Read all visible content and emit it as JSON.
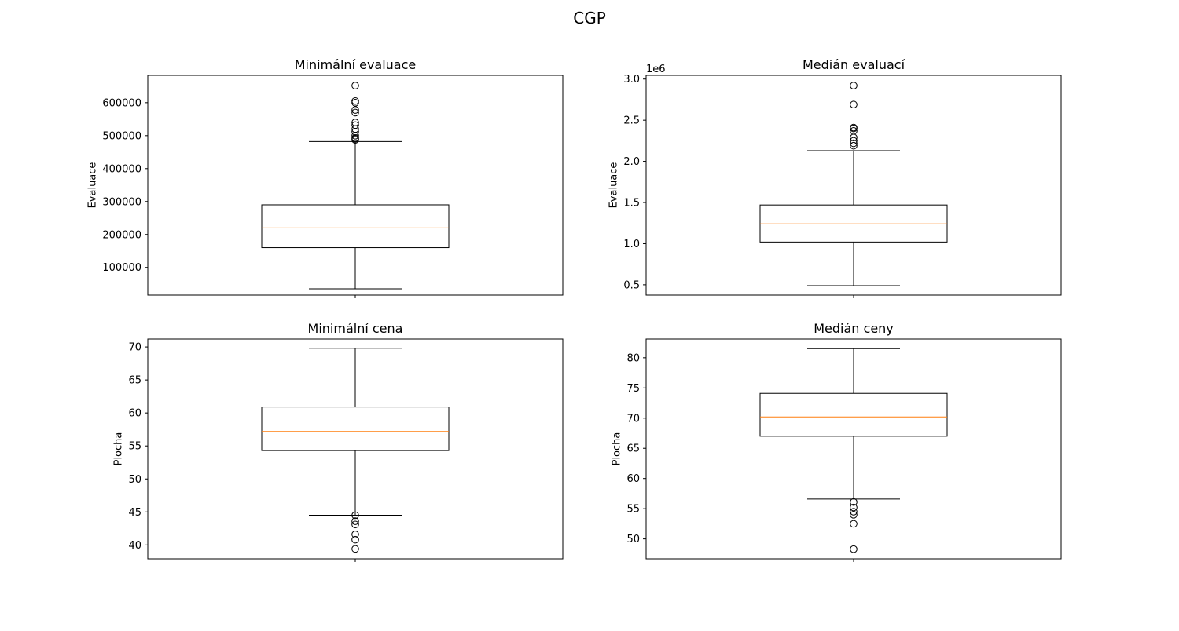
{
  "suptitle": "CGP",
  "chart_data": [
    {
      "type": "box",
      "title": "Minimální evaluace",
      "xlabel": "",
      "ylabel": "Evaluace",
      "ylim": [
        16000,
        683000
      ],
      "yticks": [
        100000,
        200000,
        300000,
        400000,
        500000,
        600000
      ],
      "ytick_labels": [
        "100000",
        "200000",
        "300000",
        "400000",
        "500000",
        "600000"
      ],
      "offset_label": "",
      "x_ticks": 1,
      "box": {
        "whisker_low": 35000,
        "q1": 160000,
        "median": 220000,
        "q3": 290000,
        "whisker_high": 482000,
        "fliers": [
          487000,
          490000,
          493000,
          500000,
          512000,
          520000,
          532000,
          540000,
          570000,
          578000,
          600000,
          605000,
          652000
        ]
      }
    },
    {
      "type": "box",
      "title": "Medián evaluací",
      "xlabel": "",
      "ylabel": "Evaluace",
      "ylim": [
        0.375,
        3.045
      ],
      "yticks": [
        0.5,
        1.0,
        1.5,
        2.0,
        2.5,
        3.0
      ],
      "ytick_labels": [
        "0.5",
        "1.0",
        "1.5",
        "2.0",
        "2.5",
        "3.0"
      ],
      "offset_label": "1e6",
      "x_ticks": 1,
      "box": {
        "whisker_low": 0.49,
        "q1": 1.02,
        "median": 1.24,
        "q3": 1.47,
        "whisker_high": 2.13,
        "fliers": [
          2.19,
          2.22,
          2.25,
          2.29,
          2.37,
          2.4,
          2.41,
          2.69,
          2.92
        ]
      }
    },
    {
      "type": "box",
      "title": "Minimální cena",
      "xlabel": "",
      "ylabel": "Plocha",
      "ylim": [
        37.9,
        71.2
      ],
      "yticks": [
        40,
        45,
        50,
        55,
        60,
        65,
        70
      ],
      "ytick_labels": [
        "40",
        "45",
        "50",
        "55",
        "60",
        "65",
        "70"
      ],
      "offset_label": "",
      "x_ticks": 1,
      "box": {
        "whisker_low": 44.5,
        "q1": 54.3,
        "median": 57.2,
        "q3": 60.9,
        "whisker_high": 69.8,
        "fliers": [
          39.4,
          40.8,
          41.6,
          43.1,
          43.6,
          44.5
        ]
      }
    },
    {
      "type": "box",
      "title": "Medián ceny",
      "xlabel": "",
      "ylabel": "Plocha",
      "ylim": [
        46.7,
        83.1
      ],
      "yticks": [
        50,
        55,
        60,
        65,
        70,
        75,
        80
      ],
      "ytick_labels": [
        "50",
        "55",
        "60",
        "65",
        "70",
        "75",
        "80"
      ],
      "offset_label": "",
      "x_ticks": 1,
      "box": {
        "whisker_low": 56.6,
        "q1": 67.0,
        "median": 70.2,
        "q3": 74.1,
        "whisker_high": 81.5,
        "fliers": [
          48.3,
          52.5,
          54.0,
          54.5,
          55.2,
          56.1
        ]
      }
    }
  ],
  "colors": {
    "box": "#000000",
    "median": "#ff7f0e",
    "flier": "#000000"
  }
}
